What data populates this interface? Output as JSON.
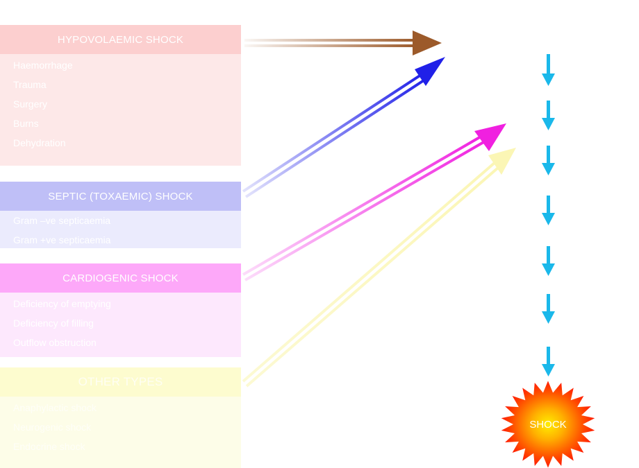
{
  "colors": {
    "hypovolaemic": "#fccfcf",
    "septic": "#bfbff7",
    "cardiogenic": "#fda8f9",
    "other": "#fdfccf",
    "cascade_arrow": "#1ab8ea",
    "shock_burst": "#ff2a00"
  },
  "panels": [
    {
      "title": "HYPOVOLAEMIC SHOCK",
      "items": [
        "Haemorrhage",
        "Trauma",
        "Surgery",
        "Burns",
        "Dehydration"
      ]
    },
    {
      "title": "SEPTIC (TOXAEMIC) SHOCK",
      "items": [
        "Gram –ve septicaemia",
        "Gram +ve septicaemia"
      ]
    },
    {
      "title": "CARDIOGENIC SHOCK",
      "items": [
        "Deficiency of emptying",
        "Deficiency of filling",
        "Outflow obstruction"
      ]
    },
    {
      "title": "OTHER TYPES",
      "items": [
        "Anaphylactic shock",
        "Neurogenic shock",
        "Endocrine shock"
      ]
    }
  ],
  "outcome": {
    "label": "SHOCK",
    "icon": "starburst-icon"
  }
}
